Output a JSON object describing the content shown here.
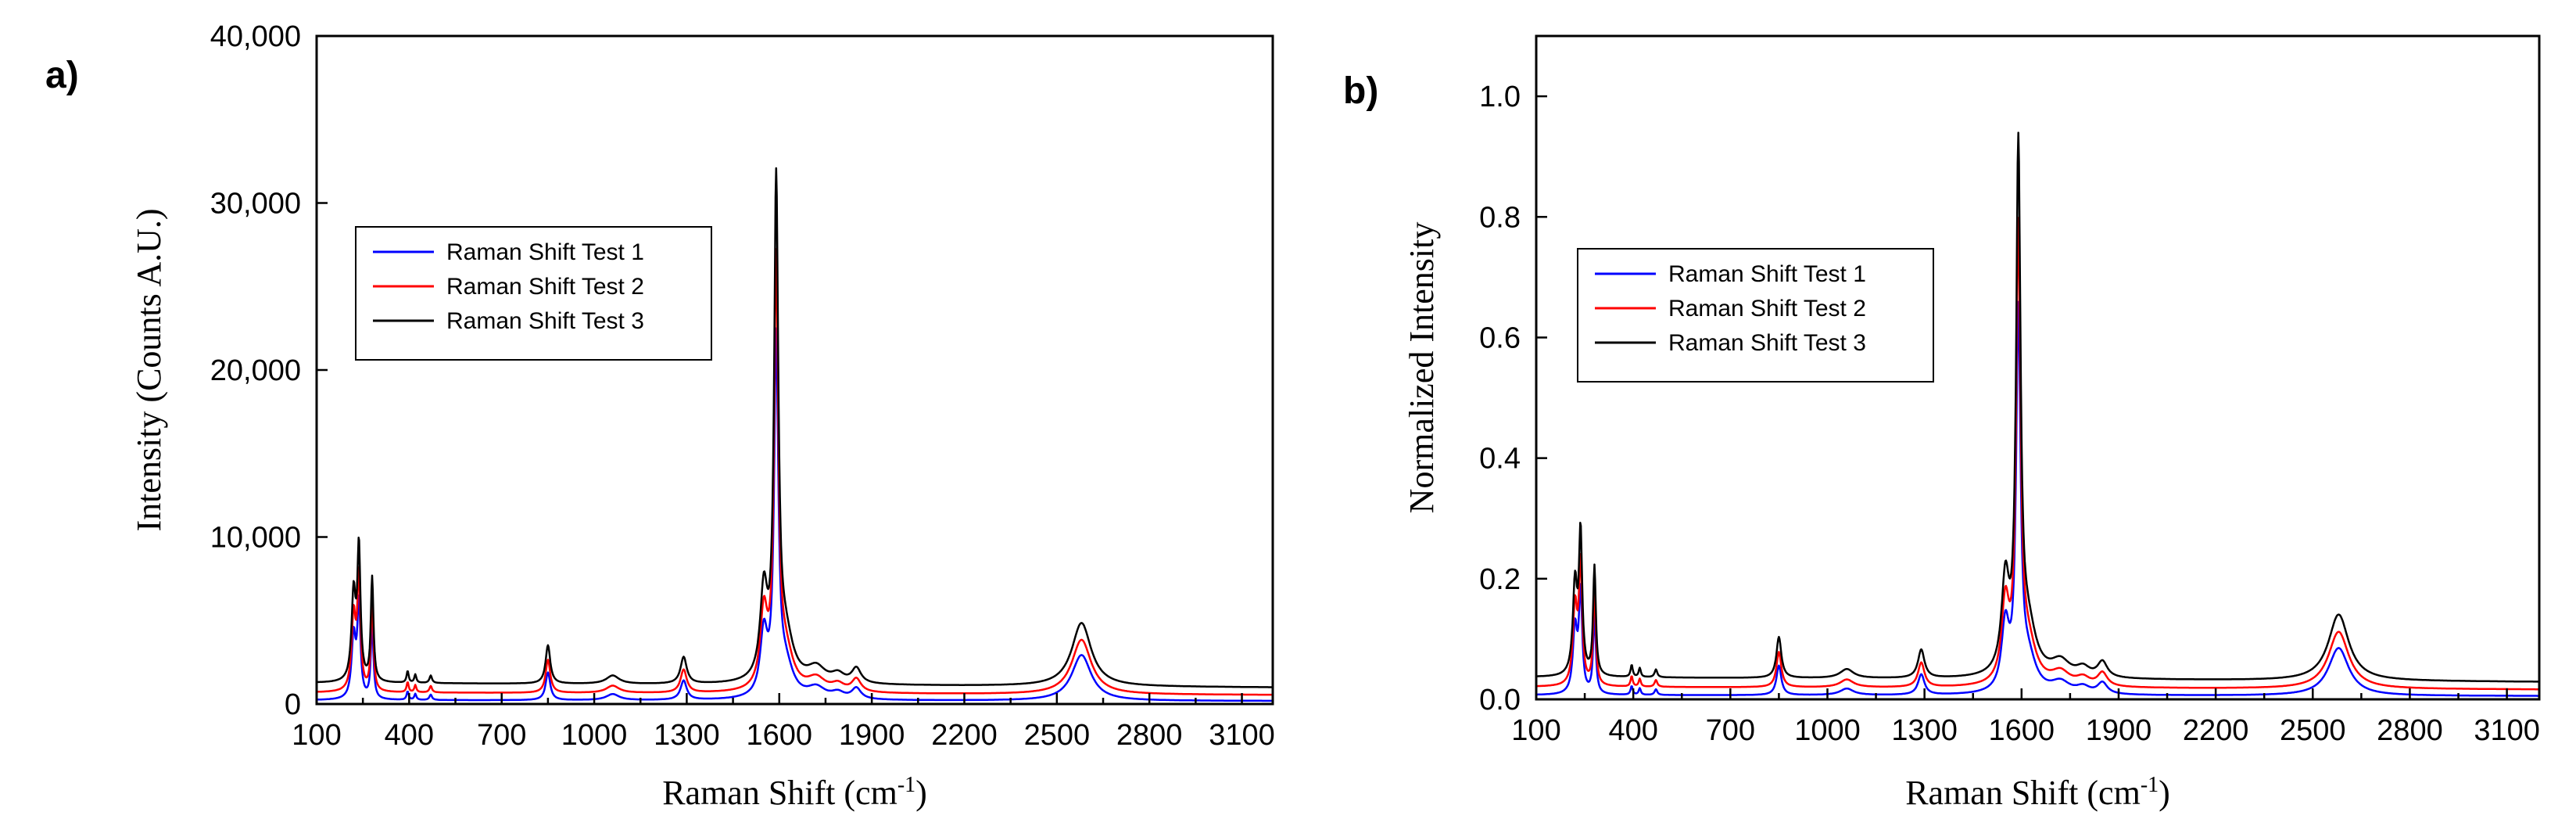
{
  "chart_data": [
    {
      "type": "line",
      "panel_label": "a)",
      "title": "",
      "xlabel": "Raman Shift (cm",
      "xlabel_sup": "-1",
      "xlabel_end": ")",
      "ylabel": "Intensity (Counts A.U.)",
      "xlim": [
        100,
        3200
      ],
      "ylim": [
        0,
        40000
      ],
      "xticks": [
        100,
        400,
        700,
        1000,
        1300,
        1600,
        1900,
        2200,
        2500,
        2800,
        3100
      ],
      "xtick_labels": [
        "100",
        "400",
        "700",
        "1000",
        "1300",
        "1600",
        "1900",
        "2200",
        "2500",
        "2800",
        "3100"
      ],
      "yticks": [
        0,
        10000,
        20000,
        30000,
        40000
      ],
      "ytick_labels": [
        "0",
        "10,000",
        "20,000",
        "30,000",
        "40,000"
      ],
      "legend_position": "upper-left",
      "peaks": [
        {
          "x": 220,
          "y": 5200,
          "w": 8
        },
        {
          "x": 237,
          "y": 7800,
          "w": 6
        },
        {
          "x": 280,
          "y": 6200,
          "w": 5
        },
        {
          "x": 395,
          "y": 700,
          "w": 4
        },
        {
          "x": 420,
          "y": 500,
          "w": 4
        },
        {
          "x": 470,
          "y": 450,
          "w": 5
        },
        {
          "x": 850,
          "y": 2300,
          "w": 9
        },
        {
          "x": 1060,
          "y": 500,
          "w": 25
        },
        {
          "x": 1290,
          "y": 1600,
          "w": 12
        },
        {
          "x": 1550,
          "y": 5200,
          "w": 14
        },
        {
          "x": 1590,
          "y": 29000,
          "w": 8
        },
        {
          "x": 1620,
          "y": 2600,
          "w": 30
        },
        {
          "x": 1720,
          "y": 900,
          "w": 35
        },
        {
          "x": 1790,
          "y": 500,
          "w": 25
        },
        {
          "x": 1850,
          "y": 900,
          "w": 18
        },
        {
          "x": 2580,
          "y": 3800,
          "w": 38
        }
      ],
      "series": [
        {
          "name": "Raman Shift Test 1",
          "color": "#0000ff",
          "scale": 0.72,
          "offset": 200
        },
        {
          "name": "Raman Shift Test 2",
          "color": "#ff0000",
          "scale": 0.86,
          "offset": 600
        },
        {
          "name": "Raman Shift Test 3",
          "color": "#000000",
          "scale": 1.0,
          "offset": 1100
        }
      ]
    },
    {
      "type": "line",
      "panel_label": "b)",
      "title": "",
      "xlabel": "Raman Shift (cm",
      "xlabel_sup": "-1",
      "xlabel_end": ")",
      "ylabel": "Normalized Intensity",
      "xlim": [
        100,
        3200
      ],
      "ylim": [
        0,
        1.1
      ],
      "xticks": [
        100,
        400,
        700,
        1000,
        1300,
        1600,
        1900,
        2200,
        2500,
        2800,
        3100
      ],
      "xtick_labels": [
        "100",
        "400",
        "700",
        "1000",
        "1300",
        "1600",
        "1900",
        "2200",
        "2500",
        "2800",
        "3100"
      ],
      "yticks": [
        0,
        0.2,
        0.4,
        0.6,
        0.8,
        1.0
      ],
      "ytick_labels": [
        "0.0",
        "0.2",
        "0.4",
        "0.6",
        "0.8",
        "1.0"
      ],
      "legend_position": "upper-left",
      "peaks": [
        {
          "x": 220,
          "y": 0.15,
          "w": 8
        },
        {
          "x": 237,
          "y": 0.23,
          "w": 6
        },
        {
          "x": 280,
          "y": 0.18,
          "w": 5
        },
        {
          "x": 395,
          "y": 0.02,
          "w": 4
        },
        {
          "x": 420,
          "y": 0.015,
          "w": 4
        },
        {
          "x": 470,
          "y": 0.013,
          "w": 5
        },
        {
          "x": 850,
          "y": 0.068,
          "w": 9
        },
        {
          "x": 1060,
          "y": 0.015,
          "w": 25
        },
        {
          "x": 1290,
          "y": 0.047,
          "w": 12
        },
        {
          "x": 1550,
          "y": 0.15,
          "w": 14
        },
        {
          "x": 1590,
          "y": 0.85,
          "w": 8
        },
        {
          "x": 1620,
          "y": 0.076,
          "w": 30
        },
        {
          "x": 1720,
          "y": 0.026,
          "w": 35
        },
        {
          "x": 1790,
          "y": 0.015,
          "w": 25
        },
        {
          "x": 1850,
          "y": 0.026,
          "w": 18
        },
        {
          "x": 2580,
          "y": 0.11,
          "w": 38
        }
      ],
      "series": [
        {
          "name": "Raman Shift Test 1",
          "color": "#0000ff",
          "scale": 0.72,
          "offset": 0.006
        },
        {
          "name": "Raman Shift Test 2",
          "color": "#ff0000",
          "scale": 0.86,
          "offset": 0.018
        },
        {
          "name": "Raman Shift Test 3",
          "color": "#000000",
          "scale": 1.0,
          "offset": 0.032
        }
      ]
    }
  ]
}
